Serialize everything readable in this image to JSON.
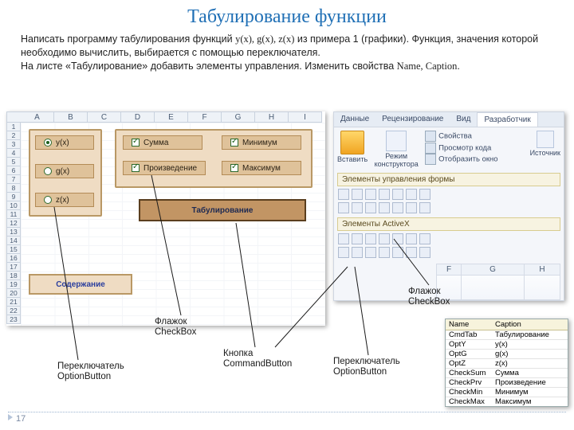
{
  "title": "Табулирование функции",
  "intro_html": "Написать программу табулирования функций y(x), g(x), z(x) из примера 1 (графики). Функция, значения которой необходимо вычислить, выбирается с помощью переключателя.\nНа листе «Табулирование» добавить элементы управления. Изменить свойства Name, Caption.",
  "intro_p1a": "Написать программу табулирования функций ",
  "intro_p1b": " из примера 1 (графики). Функция, значения которой необходимо вычислить, выбирается с помощью переключателя.",
  "intro_fns": "y(x), g(x), z(x)",
  "intro_p2a": "На листе «Табулирование» добавить элементы управления. Изменить свойства ",
  "intro_names": "Name, Caption",
  "intro_p2b": ".",
  "columns": [
    "A",
    "B",
    "C",
    "D",
    "E",
    "F",
    "G",
    "H",
    "I"
  ],
  "row_count": 23,
  "options": [
    {
      "label": "y(x)",
      "checked": true
    },
    {
      "label": "g(x)",
      "checked": false
    },
    {
      "label": "z(x)",
      "checked": false
    }
  ],
  "checks_left": [
    {
      "label": "Сумма",
      "checked": true
    },
    {
      "label": "Произведение",
      "checked": true
    }
  ],
  "checks_right": [
    {
      "label": "Минимум",
      "checked": true
    },
    {
      "label": "Максимум",
      "checked": true
    }
  ],
  "btn_tab": "Табулирование",
  "btn_soder": "Содержание",
  "ribbon_tabs": [
    "Данные",
    "Рецензирование",
    "Вид",
    "Разработчик"
  ],
  "rib_insert": "Вставить",
  "rib_mode": "Режим конструктора",
  "rib_prop": "Свойства",
  "rib_code": "Просмотр кода",
  "rib_win": "Отобразить окно",
  "rib_src": "Источник",
  "rib_bar1": "Элементы управления формы",
  "rib_bar2": "Элементы ActiveX",
  "rib_cols": [
    "F",
    "G",
    "H"
  ],
  "annotations": {
    "opt1": "Переключатель OptionButton",
    "chk1": "Флажок CheckBox",
    "cmd": "Кнопка CommandButton",
    "opt2": "Переключатель OptionButton",
    "chk2": "Флажок CheckBox"
  },
  "proptable": {
    "h1": "Name",
    "h2": "Caption",
    "rows": [
      [
        "CmdTab",
        "Табулирование"
      ],
      [
        "OptY",
        "y(x)"
      ],
      [
        "OptG",
        "g(x)"
      ],
      [
        "OptZ",
        "z(x)"
      ],
      [
        "CheckSum",
        "Сумма"
      ],
      [
        "CheckPrv",
        "Произведение"
      ],
      [
        "CheckMin",
        "Минимум"
      ],
      [
        "CheckMax",
        "Максимум"
      ]
    ]
  },
  "page_no": "17",
  "colors": {
    "title": "#1f6fb5",
    "panel_bg": "#efdcc3",
    "panel_border": "#b99865",
    "ctrl_bg": "#dfc29a"
  }
}
